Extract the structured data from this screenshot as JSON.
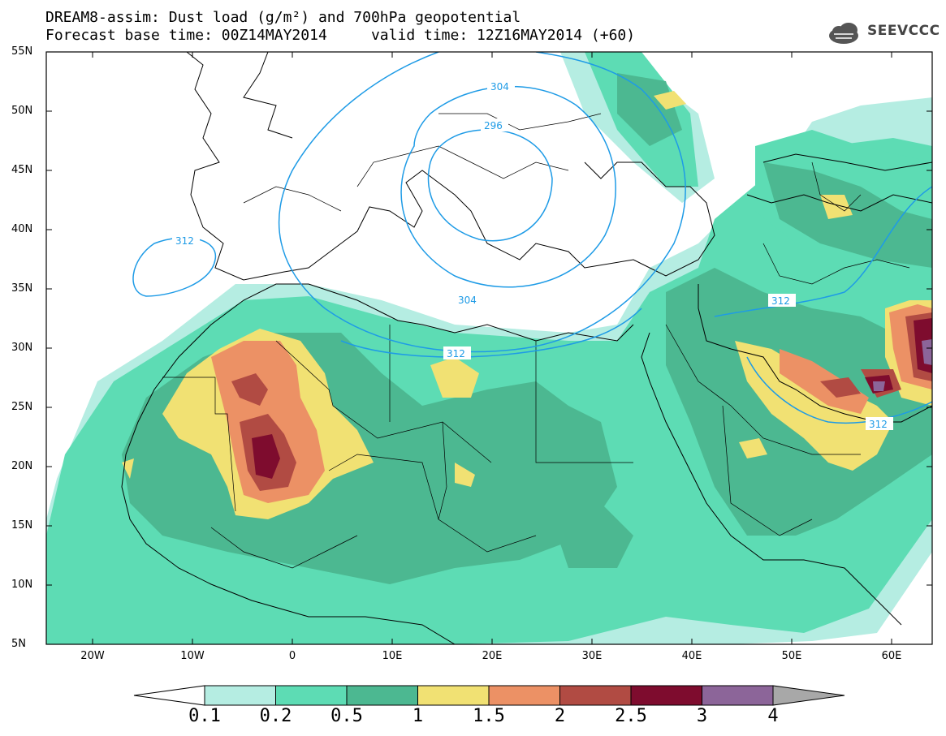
{
  "header": {
    "title_line1": "DREAM8-assim: Dust load (g/m²) and 700hPa geopotential",
    "title_line2": "Forecast base time: 00Z14MAY2014     valid time: 12Z16MAY2014 (+60)",
    "logo_text": "SEEVCCC"
  },
  "axes": {
    "lat_labels": [
      "55N",
      "50N",
      "45N",
      "40N",
      "35N",
      "30N",
      "25N",
      "20N",
      "15N",
      "10N",
      "5N"
    ],
    "lon_labels": [
      "20W",
      "10W",
      "0",
      "10E",
      "20E",
      "30E",
      "40E",
      "50E",
      "60E"
    ]
  },
  "contours": {
    "labels": [
      "304",
      "296",
      "312",
      "304",
      "312",
      "312",
      "312"
    ],
    "color": "#1e9be6"
  },
  "colorbar": {
    "labels": [
      "0.1",
      "0.2",
      "0.5",
      "1",
      "1.5",
      "2",
      "2.5",
      "3",
      "4"
    ],
    "colors": [
      "#ffffff",
      "#b5ede2",
      "#5ddcb4",
      "#4cb891",
      "#f1e173",
      "#ec9165",
      "#b14b43",
      "#7e0c2e",
      "#8c6599",
      "#a8a8a8"
    ]
  },
  "palette": {
    "land_line": "#000000",
    "dust_01": "#b5ede2",
    "dust_02": "#5ddcb4",
    "dust_05": "#4cb891",
    "dust_1": "#f1e173",
    "dust_15": "#ec9165",
    "dust_2": "#b14b43",
    "dust_25": "#7e0c2e",
    "dust_3": "#8c6599"
  }
}
